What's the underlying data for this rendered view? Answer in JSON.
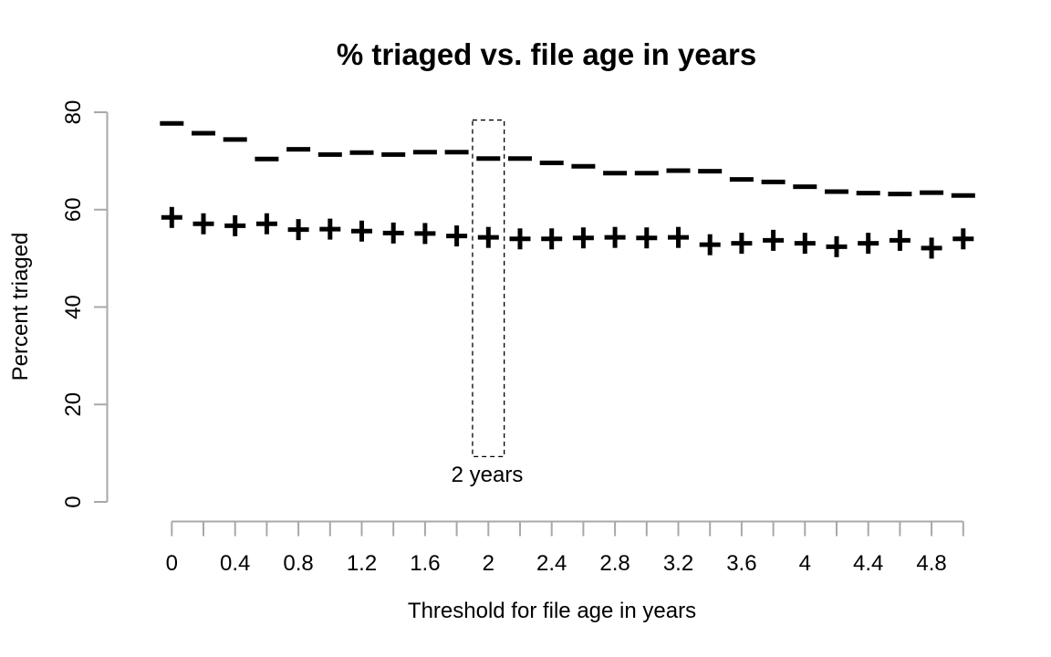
{
  "colors": {
    "marks": "#000000",
    "axis": "#a8a8a8",
    "text": "#000000",
    "annotation": "#000000"
  },
  "chart_data": {
    "type": "scatter",
    "title": "% triaged vs. file age in years",
    "xlabel": "Threshold for file age in years",
    "ylabel": "Percent triaged",
    "xlim": [
      0,
      5
    ],
    "ylim": [
      0,
      80
    ],
    "grid": false,
    "x_minor_tick_step": 0.2,
    "x_tick_values": [
      0,
      0.4,
      0.8,
      1.2,
      1.6,
      2,
      2.4,
      2.8,
      3.2,
      3.6,
      4,
      4.4,
      4.8
    ],
    "x_tick_labels": [
      "0",
      "0.4",
      "0.8",
      "1.2",
      "1.6",
      "2",
      "2.4",
      "2.8",
      "3.2",
      "3.6",
      "4",
      "4.4",
      "4.8"
    ],
    "y_tick_values": [
      0,
      20,
      40,
      60,
      80
    ],
    "y_tick_labels": [
      "0",
      "20",
      "40",
      "60",
      "80"
    ],
    "x": [
      0,
      0.2,
      0.4,
      0.6,
      0.8,
      1,
      1.2,
      1.4,
      1.6,
      1.8,
      2,
      2.2,
      2.4,
      2.6,
      2.8,
      3,
      3.2,
      3.4,
      3.6,
      3.8,
      4,
      4.2,
      4.4,
      4.6,
      4.8,
      5
    ],
    "series": [
      {
        "name": "upper-dash-series",
        "marker": "-",
        "values": [
          77.7,
          75.7,
          74.4,
          70.4,
          72.4,
          71.3,
          71.7,
          71.3,
          71.8,
          71.8,
          70.5,
          70.5,
          69.6,
          68.9,
          67.5,
          67.5,
          68.0,
          67.9,
          66.2,
          65.7,
          64.7,
          63.7,
          63.4,
          63.2,
          63.5,
          62.9
        ]
      },
      {
        "name": "lower-plus-series",
        "marker": "+",
        "values": [
          58.4,
          57.1,
          56.7,
          57.1,
          55.9,
          56.0,
          55.6,
          55.2,
          55.1,
          54.6,
          54.3,
          54.0,
          54.0,
          54.2,
          54.3,
          54.2,
          54.3,
          52.8,
          53.1,
          53.7,
          53.1,
          52.4,
          53.1,
          53.7,
          52.1,
          54.0
        ]
      }
    ],
    "annotation": {
      "label": "2 years",
      "rect_x": [
        1.9,
        2.1
      ],
      "rect_y": [
        9.3,
        78.4
      ]
    }
  }
}
